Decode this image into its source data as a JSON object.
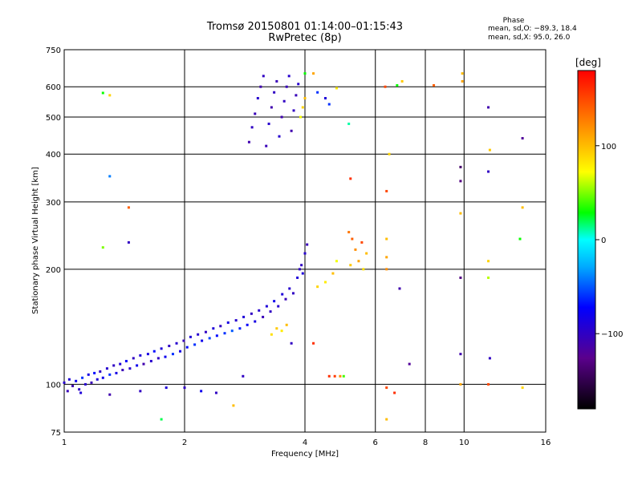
{
  "header": {
    "title_line1": "Tromsø 20150801 01:14:00–01:15:43",
    "title_line2": "RwPretec (8p)",
    "phase_title": "Phase",
    "phase_o": "mean, sd,O: −89.3, 18.4",
    "phase_x": "mean, sd,X:  95.0, 26.0"
  },
  "chart_data": {
    "type": "scatter",
    "xlabel": "Frequency [MHz]",
    "ylabel": "Stationary phase Virtual Height [km]",
    "x_scale": "log",
    "y_scale": "log",
    "xlim": [
      1,
      16
    ],
    "ylim": [
      75,
      750
    ],
    "x_ticks": [
      1,
      2,
      4,
      6,
      8,
      10,
      16
    ],
    "x_tick_labels": [
      "1",
      "2",
      "4",
      "6",
      "8",
      "10",
      "16"
    ],
    "y_ticks": [
      75,
      100,
      200,
      300,
      400,
      500,
      600,
      750
    ],
    "y_tick_labels": [
      "75",
      "100",
      "200",
      "300",
      "400",
      "500",
      "600",
      "750"
    ],
    "grid": true,
    "colorbar": {
      "label": "[deg]",
      "range": [
        -180,
        180
      ],
      "ticks": [
        100,
        0,
        -100
      ],
      "tick_labels": [
        "100",
        "0",
        "−100"
      ],
      "colors": [
        "#000000",
        "#5a008c",
        "#0000ff",
        "#00aaff",
        "#00ffff",
        "#00ff00",
        "#ffff00",
        "#ff9900",
        "#ff0000"
      ]
    },
    "series": [
      {
        "points": [
          {
            "x": 1.0,
            "y": 101,
            "phase": -95
          },
          {
            "x": 1.02,
            "y": 96,
            "phase": -105
          },
          {
            "x": 1.03,
            "y": 103,
            "phase": -90
          },
          {
            "x": 1.05,
            "y": 99,
            "phase": -110
          },
          {
            "x": 1.07,
            "y": 102,
            "phase": -80
          },
          {
            "x": 1.09,
            "y": 97,
            "phase": -100
          },
          {
            "x": 1.11,
            "y": 104,
            "phase": -60
          },
          {
            "x": 1.13,
            "y": 100,
            "phase": -95
          },
          {
            "x": 1.15,
            "y": 106,
            "phase": -85
          },
          {
            "x": 1.17,
            "y": 101,
            "phase": -105
          },
          {
            "x": 1.19,
            "y": 107,
            "phase": -70
          },
          {
            "x": 1.21,
            "y": 103,
            "phase": -90
          },
          {
            "x": 1.23,
            "y": 108,
            "phase": -100
          },
          {
            "x": 1.25,
            "y": 104,
            "phase": -80
          },
          {
            "x": 1.28,
            "y": 110,
            "phase": -95
          },
          {
            "x": 1.3,
            "y": 106,
            "phase": -60
          },
          {
            "x": 1.33,
            "y": 112,
            "phase": -100
          },
          {
            "x": 1.35,
            "y": 107,
            "phase": -85
          },
          {
            "x": 1.38,
            "y": 113,
            "phase": -90
          },
          {
            "x": 1.4,
            "y": 109,
            "phase": -105
          },
          {
            "x": 1.43,
            "y": 115,
            "phase": -75
          },
          {
            "x": 1.46,
            "y": 110,
            "phase": -95
          },
          {
            "x": 1.49,
            "y": 117,
            "phase": -100
          },
          {
            "x": 1.52,
            "y": 112,
            "phase": -80
          },
          {
            "x": 1.55,
            "y": 119,
            "phase": -90
          },
          {
            "x": 1.58,
            "y": 113,
            "phase": -110
          },
          {
            "x": 1.62,
            "y": 120,
            "phase": -85
          },
          {
            "x": 1.65,
            "y": 115,
            "phase": -95
          },
          {
            "x": 1.68,
            "y": 122,
            "phase": -70
          },
          {
            "x": 1.72,
            "y": 117,
            "phase": -100
          },
          {
            "x": 1.75,
            "y": 124,
            "phase": -90
          },
          {
            "x": 1.79,
            "y": 118,
            "phase": -80
          },
          {
            "x": 1.83,
            "y": 126,
            "phase": -100
          },
          {
            "x": 1.87,
            "y": 120,
            "phase": -60
          },
          {
            "x": 1.91,
            "y": 128,
            "phase": -95
          },
          {
            "x": 1.95,
            "y": 122,
            "phase": -85
          },
          {
            "x": 1.99,
            "y": 130,
            "phase": -105
          },
          {
            "x": 2.03,
            "y": 125,
            "phase": -70
          },
          {
            "x": 2.07,
            "y": 133,
            "phase": -90
          },
          {
            "x": 2.12,
            "y": 127,
            "phase": -60
          },
          {
            "x": 2.16,
            "y": 135,
            "phase": -95
          },
          {
            "x": 2.21,
            "y": 130,
            "phase": -80
          },
          {
            "x": 2.26,
            "y": 137,
            "phase": -100
          },
          {
            "x": 2.31,
            "y": 132,
            "phase": -55
          },
          {
            "x": 2.36,
            "y": 140,
            "phase": -90
          },
          {
            "x": 2.41,
            "y": 134,
            "phase": -70
          },
          {
            "x": 2.46,
            "y": 142,
            "phase": -100
          },
          {
            "x": 2.52,
            "y": 136,
            "phase": -60
          },
          {
            "x": 2.57,
            "y": 145,
            "phase": -85
          },
          {
            "x": 2.63,
            "y": 138,
            "phase": -50
          },
          {
            "x": 2.69,
            "y": 147,
            "phase": -95
          },
          {
            "x": 2.75,
            "y": 140,
            "phase": -65
          },
          {
            "x": 2.81,
            "y": 150,
            "phase": -90
          },
          {
            "x": 2.87,
            "y": 143,
            "phase": -75
          },
          {
            "x": 2.94,
            "y": 153,
            "phase": -100
          },
          {
            "x": 3.0,
            "y": 146,
            "phase": -85
          },
          {
            "x": 3.07,
            "y": 156,
            "phase": -95
          },
          {
            "x": 3.14,
            "y": 150,
            "phase": -105
          },
          {
            "x": 3.21,
            "y": 160,
            "phase": -90
          },
          {
            "x": 3.28,
            "y": 155,
            "phase": -100
          },
          {
            "x": 3.35,
            "y": 165,
            "phase": -80
          },
          {
            "x": 3.43,
            "y": 160,
            "phase": -95
          },
          {
            "x": 3.51,
            "y": 172,
            "phase": -90
          },
          {
            "x": 3.58,
            "y": 167,
            "phase": -105
          },
          {
            "x": 3.66,
            "y": 178,
            "phase": -95
          },
          {
            "x": 3.74,
            "y": 173,
            "phase": -100
          },
          {
            "x": 3.83,
            "y": 190,
            "phase": -90
          },
          {
            "x": 3.92,
            "y": 205,
            "phase": -100
          },
          {
            "x": 4.0,
            "y": 220,
            "phase": -95
          },
          {
            "x": 4.05,
            "y": 232,
            "phase": -105
          },
          {
            "x": 3.95,
            "y": 195,
            "phase": -90
          },
          {
            "x": 3.88,
            "y": 200,
            "phase": -100
          },
          {
            "x": 3.3,
            "y": 135,
            "phase": 85
          },
          {
            "x": 3.4,
            "y": 140,
            "phase": 95
          },
          {
            "x": 3.5,
            "y": 138,
            "phase": 80
          },
          {
            "x": 3.6,
            "y": 143,
            "phase": 100
          },
          {
            "x": 4.3,
            "y": 180,
            "phase": 90
          },
          {
            "x": 4.5,
            "y": 185,
            "phase": 80
          },
          {
            "x": 4.7,
            "y": 195,
            "phase": 100
          },
          {
            "x": 4.8,
            "y": 210,
            "phase": 70
          },
          {
            "x": 5.15,
            "y": 250,
            "phase": 130
          },
          {
            "x": 5.25,
            "y": 240,
            "phase": 140
          },
          {
            "x": 5.35,
            "y": 225,
            "phase": 120
          },
          {
            "x": 5.45,
            "y": 210,
            "phase": 110
          },
          {
            "x": 5.55,
            "y": 235,
            "phase": 150
          },
          {
            "x": 5.7,
            "y": 220,
            "phase": 100
          },
          {
            "x": 5.2,
            "y": 205,
            "phase": 95
          },
          {
            "x": 5.6,
            "y": 200,
            "phase": 85
          },
          {
            "x": 4.6,
            "y": 105,
            "phase": 160
          },
          {
            "x": 4.75,
            "y": 105,
            "phase": 155
          },
          {
            "x": 4.9,
            "y": 105,
            "phase": 120
          },
          {
            "x": 5.0,
            "y": 105,
            "phase": 40
          },
          {
            "x": 2.9,
            "y": 430,
            "phase": -110
          },
          {
            "x": 2.95,
            "y": 470,
            "phase": -100
          },
          {
            "x": 3.0,
            "y": 510,
            "phase": -105
          },
          {
            "x": 3.05,
            "y": 560,
            "phase": -95
          },
          {
            "x": 3.1,
            "y": 600,
            "phase": -110
          },
          {
            "x": 3.15,
            "y": 640,
            "phase": -100
          },
          {
            "x": 3.2,
            "y": 420,
            "phase": -105
          },
          {
            "x": 3.25,
            "y": 480,
            "phase": -95
          },
          {
            "x": 3.3,
            "y": 530,
            "phase": -110
          },
          {
            "x": 3.35,
            "y": 580,
            "phase": -100
          },
          {
            "x": 3.4,
            "y": 620,
            "phase": -105
          },
          {
            "x": 3.45,
            "y": 445,
            "phase": -95
          },
          {
            "x": 3.5,
            "y": 500,
            "phase": -110
          },
          {
            "x": 3.55,
            "y": 550,
            "phase": -100
          },
          {
            "x": 3.6,
            "y": 600,
            "phase": -105
          },
          {
            "x": 3.65,
            "y": 640,
            "phase": -95
          },
          {
            "x": 3.7,
            "y": 460,
            "phase": -110
          },
          {
            "x": 3.75,
            "y": 520,
            "phase": -100
          },
          {
            "x": 3.8,
            "y": 570,
            "phase": -105
          },
          {
            "x": 3.85,
            "y": 610,
            "phase": -95
          },
          {
            "x": 3.9,
            "y": 500,
            "phase": 70
          },
          {
            "x": 3.95,
            "y": 530,
            "phase": 90
          },
          {
            "x": 4.0,
            "y": 560,
            "phase": 100
          },
          {
            "x": 6.35,
            "y": 600,
            "phase": 150
          },
          {
            "x": 6.8,
            "y": 605,
            "phase": 30
          },
          {
            "x": 7.0,
            "y": 620,
            "phase": 95
          },
          {
            "x": 9.9,
            "y": 650,
            "phase": 100
          },
          {
            "x": 9.9,
            "y": 620,
            "phase": 110
          },
          {
            "x": 9.8,
            "y": 370,
            "phase": -140
          },
          {
            "x": 9.8,
            "y": 340,
            "phase": -130
          },
          {
            "x": 11.5,
            "y": 530,
            "phase": -110
          },
          {
            "x": 11.5,
            "y": 360,
            "phase": -100
          },
          {
            "x": 11.6,
            "y": 410,
            "phase": 95
          },
          {
            "x": 14.0,
            "y": 440,
            "phase": -120
          },
          {
            "x": 14.0,
            "y": 290,
            "phase": 100
          },
          {
            "x": 13.8,
            "y": 240,
            "phase": 30
          },
          {
            "x": 11.5,
            "y": 210,
            "phase": 90
          },
          {
            "x": 11.5,
            "y": 190,
            "phase": 60
          },
          {
            "x": 9.8,
            "y": 280,
            "phase": 100
          },
          {
            "x": 9.8,
            "y": 190,
            "phase": -130
          },
          {
            "x": 9.8,
            "y": 120,
            "phase": -110
          },
          {
            "x": 9.8,
            "y": 100,
            "phase": 110
          },
          {
            "x": 11.5,
            "y": 100,
            "phase": 150
          },
          {
            "x": 11.6,
            "y": 117,
            "phase": -100
          },
          {
            "x": 14.0,
            "y": 98,
            "phase": 90
          },
          {
            "x": 6.4,
            "y": 98,
            "phase": 150
          },
          {
            "x": 6.7,
            "y": 95,
            "phase": 160
          },
          {
            "x": 6.4,
            "y": 81,
            "phase": 100
          },
          {
            "x": 6.9,
            "y": 178,
            "phase": -110
          },
          {
            "x": 7.3,
            "y": 113,
            "phase": -120
          },
          {
            "x": 1.25,
            "y": 578,
            "phase": 30
          },
          {
            "x": 1.3,
            "y": 570,
            "phase": 90
          },
          {
            "x": 1.3,
            "y": 350,
            "phase": -40
          },
          {
            "x": 1.45,
            "y": 290,
            "phase": 140
          },
          {
            "x": 1.25,
            "y": 228,
            "phase": 50
          },
          {
            "x": 1.45,
            "y": 235,
            "phase": -100
          },
          {
            "x": 1.75,
            "y": 81,
            "phase": 20
          },
          {
            "x": 2.65,
            "y": 88,
            "phase": 100
          },
          {
            "x": 5.15,
            "y": 480,
            "phase": 10
          },
          {
            "x": 5.2,
            "y": 345,
            "phase": 160
          },
          {
            "x": 4.5,
            "y": 560,
            "phase": -90
          },
          {
            "x": 4.6,
            "y": 540,
            "phase": -60
          },
          {
            "x": 4.8,
            "y": 595,
            "phase": 80
          },
          {
            "x": 4.2,
            "y": 650,
            "phase": 110
          },
          {
            "x": 4.3,
            "y": 580,
            "phase": -60
          },
          {
            "x": 4.0,
            "y": 650,
            "phase": 30
          },
          {
            "x": 8.4,
            "y": 605,
            "phase": 140
          },
          {
            "x": 6.4,
            "y": 320,
            "phase": 150
          },
          {
            "x": 6.5,
            "y": 400,
            "phase": 90
          },
          {
            "x": 6.4,
            "y": 240,
            "phase": 100
          },
          {
            "x": 6.4,
            "y": 215,
            "phase": 110
          },
          {
            "x": 6.4,
            "y": 200,
            "phase": 120
          },
          {
            "x": 2.0,
            "y": 98,
            "phase": -100
          },
          {
            "x": 2.2,
            "y": 96,
            "phase": -80
          },
          {
            "x": 2.4,
            "y": 95,
            "phase": -100
          },
          {
            "x": 1.8,
            "y": 98,
            "phase": -90
          },
          {
            "x": 1.55,
            "y": 96,
            "phase": -100
          },
          {
            "x": 1.3,
            "y": 94,
            "phase": -110
          },
          {
            "x": 1.1,
            "y": 95,
            "phase": -90
          },
          {
            "x": 2.8,
            "y": 105,
            "phase": -100
          },
          {
            "x": 4.2,
            "y": 128,
            "phase": 160
          },
          {
            "x": 3.7,
            "y": 128,
            "phase": -100
          }
        ]
      }
    ]
  }
}
